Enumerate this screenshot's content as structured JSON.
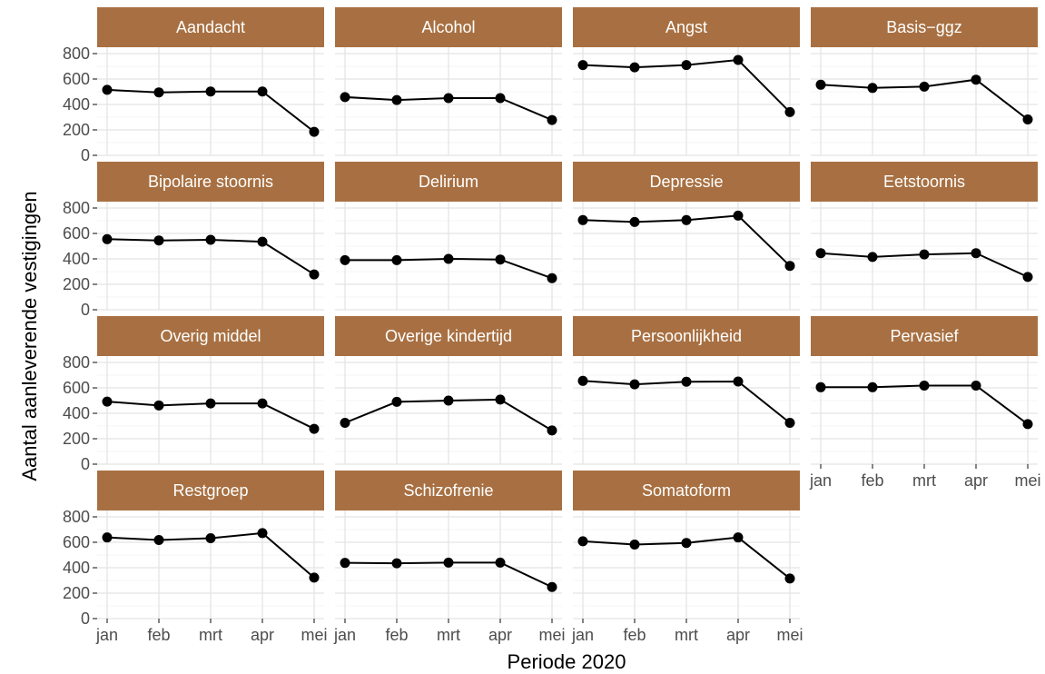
{
  "chart_data": {
    "type": "line",
    "xlabel": "Periode 2020",
    "ylabel": "Aantal aanleverende vestigingen",
    "categories": [
      "jan",
      "feb",
      "mrt",
      "apr",
      "mei"
    ],
    "ylim": [
      0,
      850
    ],
    "yticks": [
      0,
      200,
      400,
      600,
      800
    ],
    "grid": true,
    "strip_color": "#A87042",
    "line_color": "#000000",
    "panels": [
      {
        "title": "Aandacht",
        "values": [
          515,
          495,
          502,
          502,
          185
        ]
      },
      {
        "title": "Alcohol",
        "values": [
          458,
          435,
          450,
          450,
          278
        ]
      },
      {
        "title": "Angst",
        "values": [
          710,
          692,
          710,
          750,
          340
        ]
      },
      {
        "title": "Basis−ggz",
        "values": [
          555,
          530,
          540,
          595,
          282
        ]
      },
      {
        "title": "Bipolaire stoornis",
        "values": [
          555,
          545,
          550,
          535,
          278
        ]
      },
      {
        "title": "Delirium",
        "values": [
          390,
          390,
          400,
          395,
          248
        ]
      },
      {
        "title": "Depressie",
        "values": [
          705,
          690,
          705,
          740,
          345
        ]
      },
      {
        "title": "Eetstoornis",
        "values": [
          445,
          415,
          435,
          445,
          258
        ]
      },
      {
        "title": "Overig middel",
        "values": [
          492,
          462,
          478,
          478,
          278
        ]
      },
      {
        "title": "Overige kindertijd",
        "values": [
          325,
          490,
          500,
          508,
          265
        ]
      },
      {
        "title": "Persoonlijkheid",
        "values": [
          655,
          628,
          648,
          650,
          325
        ]
      },
      {
        "title": "Pervasief",
        "values": [
          605,
          605,
          618,
          618,
          315
        ]
      },
      {
        "title": "Restgroep",
        "values": [
          638,
          618,
          632,
          672,
          322
        ]
      },
      {
        "title": "Schizofrenie",
        "values": [
          438,
          435,
          440,
          440,
          248
        ]
      },
      {
        "title": "Somatoform",
        "values": [
          608,
          582,
          595,
          638,
          315
        ]
      }
    ]
  }
}
